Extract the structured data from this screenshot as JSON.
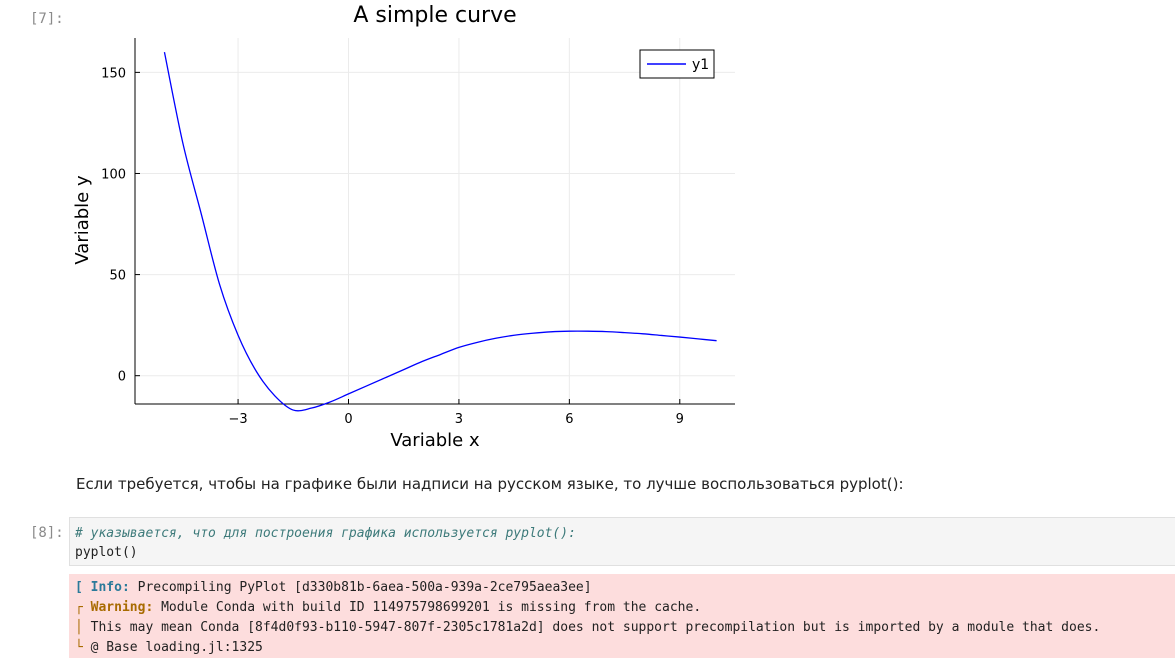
{
  "cells": {
    "cell7": {
      "prompt": "[7]:"
    },
    "markdown_text": "Если требуется, чтобы на графике были надписи на русском языке, то лучше воспользоваться pyplot():",
    "cell8": {
      "prompt": "[8]:",
      "comment": "# указывается, что для построения графика используется pyplot():",
      "code": "pyplot()",
      "output": {
        "info_tag": "[ Info:",
        "info_text": "Precompiling PyPlot [d330b81b-6aea-500a-939a-2ce795aea3ee]",
        "warn_bracket": "┌",
        "warn_tag": "Warning:",
        "warn_text": "Module Conda with build ID 114975798699201 is missing from the cache.",
        "line3_bracket": "│",
        "line3_text": "This may mean Conda [8f4d0f93-b110-5947-807f-2305c1781a2d] does not support precompilation but is imported by a module that does.",
        "line4_bracket": "└",
        "line4_text": "@ Base loading.jl:1325"
      }
    }
  },
  "colors": {
    "series": "#0000ff",
    "grid": "#ebebeb",
    "axis": "#000000"
  },
  "chart_data": {
    "type": "line",
    "title": "A simple curve",
    "xlabel": "Variable x",
    "ylabel": "Variable y",
    "xlim": [
      -5.8,
      10.5
    ],
    "ylim": [
      -14,
      167
    ],
    "xticks": [
      -3,
      0,
      3,
      6,
      9
    ],
    "yticks": [
      0,
      50,
      100,
      150
    ],
    "grid": true,
    "legend": "top-right",
    "series": [
      {
        "name": "y1",
        "x": [
          -5,
          -4.5,
          -4,
          -3.5,
          -3,
          -2.5,
          -2,
          -1.5,
          -1,
          -0.5,
          0,
          0.5,
          1,
          1.5,
          2,
          2.5,
          3,
          3.5,
          4,
          4.5,
          5,
          5.5,
          6,
          6.5,
          7,
          7.5,
          8,
          8.5,
          9,
          9.5,
          10
        ],
        "y": [
          160,
          115,
          80,
          45,
          20,
          2,
          -10,
          -17,
          -16,
          -13,
          -9,
          -5,
          -1,
          3,
          7,
          10.5,
          14,
          16.5,
          18.5,
          20,
          21,
          21.7,
          22,
          22,
          21.8,
          21.3,
          20.7,
          19.9,
          19.1,
          18.2,
          17.3
        ]
      }
    ]
  }
}
